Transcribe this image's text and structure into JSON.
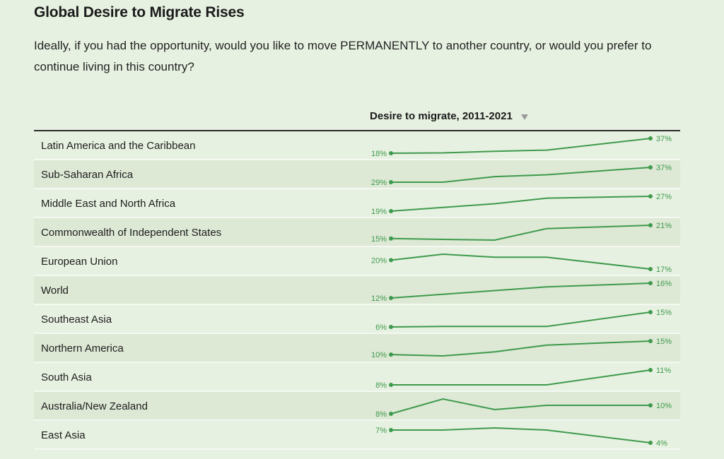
{
  "title": "Global Desire to Migrate Rises",
  "subtitle": "Ideally, if you had the opportunity, would you like to move PERMANENTLY to another country, or would you prefer to continue living in this country?",
  "column_header": "Desire to migrate, 2011-2021",
  "colors": {
    "line": "#3e9a4d",
    "background": "#e7f1e1",
    "row_alt": "#dde8d5"
  },
  "chart_data": {
    "type": "line",
    "x": [
      2011,
      2013,
      2015,
      2017,
      2021
    ],
    "series": [
      {
        "name": "Latin America and the Caribbean",
        "values": [
          18,
          18.5,
          20.5,
          22,
          37
        ],
        "start_label": "18%",
        "end_label": "37%"
      },
      {
        "name": "Sub-Saharan Africa",
        "values": [
          29,
          29,
          32,
          33,
          37
        ],
        "start_label": "29%",
        "end_label": "37%"
      },
      {
        "name": "Middle East and North Africa",
        "values": [
          19,
          21,
          23,
          26,
          27
        ],
        "start_label": "19%",
        "end_label": "27%"
      },
      {
        "name": "Commonwealth of Independent States",
        "values": [
          15,
          14.6,
          14.3,
          19.5,
          21
        ],
        "start_label": "15%",
        "end_label": "21%"
      },
      {
        "name": "European Union",
        "values": [
          20,
          22,
          21,
          21,
          17
        ],
        "start_label": "20%",
        "end_label": "17%"
      },
      {
        "name": "World",
        "values": [
          12,
          13,
          14,
          15,
          16
        ],
        "start_label": "12%",
        "end_label": "16%"
      },
      {
        "name": "Southeast Asia",
        "values": [
          6,
          6.3,
          6.3,
          6.3,
          15
        ],
        "start_label": "6%",
        "end_label": "15%"
      },
      {
        "name": "Northern America",
        "values": [
          10,
          9.5,
          11,
          13.5,
          15
        ],
        "start_label": "10%",
        "end_label": "15%"
      },
      {
        "name": "South Asia",
        "values": [
          8,
          8,
          8,
          8,
          11
        ],
        "start_label": "8%",
        "end_label": "11%"
      },
      {
        "name": "Australia/New Zealand",
        "values": [
          8,
          11.5,
          9,
          10,
          10
        ],
        "start_label": "8%",
        "end_label": "10%"
      },
      {
        "name": "East Asia",
        "values": [
          7,
          7,
          7.5,
          7,
          4
        ],
        "start_label": "7%",
        "end_label": "4%"
      }
    ]
  }
}
